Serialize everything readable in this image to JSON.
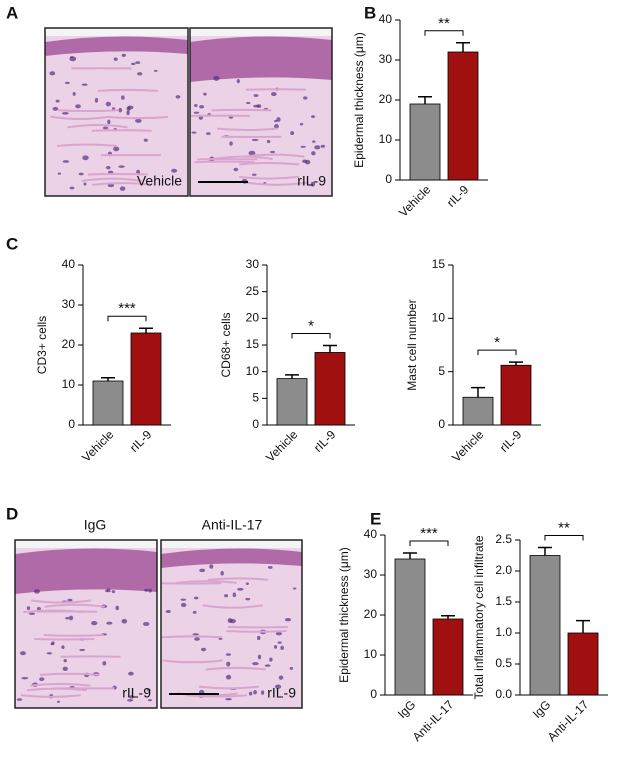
{
  "panels": {
    "A": {
      "letter": "A",
      "image_captions": [
        "Vehicle",
        "rIL-9"
      ]
    },
    "B": {
      "letter": "B"
    },
    "C": {
      "letter": "C"
    },
    "D": {
      "letter": "D",
      "image_titles": [
        "IgG",
        "Anti-IL-17"
      ],
      "image_captions": [
        "rIL-9",
        "rIL-9"
      ]
    },
    "E": {
      "letter": "E"
    }
  },
  "chart_data": [
    {
      "type": "bar",
      "ylabel": "Epidermal thickness (μm)",
      "categories": [
        "Vehicle",
        "rIL-9"
      ],
      "values": [
        19,
        32
      ],
      "errors": [
        1.8,
        2.3
      ],
      "colors": [
        "#8c8c8c",
        "#a01010"
      ],
      "ylim": [
        0,
        40
      ],
      "yticks": [
        0,
        10,
        20,
        30,
        40
      ],
      "annotation": "**"
    },
    {
      "type": "bar",
      "ylabel": "CD3+ cells",
      "categories": [
        "Vehicle",
        "rIL-9"
      ],
      "values": [
        11,
        23
      ],
      "errors": [
        0.8,
        1.2
      ],
      "colors": [
        "#8c8c8c",
        "#a01010"
      ],
      "ylim": [
        0,
        40
      ],
      "yticks": [
        0,
        10,
        20,
        30,
        40
      ],
      "annotation": "***"
    },
    {
      "type": "bar",
      "ylabel": "CD68+ cells",
      "categories": [
        "Vehicle",
        "rIL-9"
      ],
      "values": [
        8.7,
        13.6
      ],
      "errors": [
        0.7,
        1.3
      ],
      "colors": [
        "#8c8c8c",
        "#a01010"
      ],
      "ylim": [
        0,
        30
      ],
      "yticks": [
        0,
        5,
        10,
        15,
        20,
        25,
        30
      ],
      "annotation": "*"
    },
    {
      "type": "bar",
      "ylabel": "Mast cell number",
      "categories": [
        "Vehicle",
        "rIL-9"
      ],
      "values": [
        2.6,
        5.6
      ],
      "errors": [
        0.9,
        0.3
      ],
      "colors": [
        "#8c8c8c",
        "#a01010"
      ],
      "ylim": [
        0,
        15
      ],
      "yticks": [
        0,
        5,
        10,
        15
      ],
      "annotation": "*"
    },
    {
      "type": "bar",
      "ylabel": "Epidermal thickness (μm)",
      "categories": [
        "IgG",
        "Anti-IL-17"
      ],
      "values": [
        34,
        19
      ],
      "errors": [
        1.5,
        0.8
      ],
      "colors": [
        "#8c8c8c",
        "#a01010"
      ],
      "ylim": [
        0,
        40
      ],
      "yticks": [
        0,
        10,
        20,
        30,
        40
      ],
      "annotation": "***"
    },
    {
      "type": "bar",
      "ylabel": "Total inflammatory cell infiltrate",
      "categories": [
        "IgG",
        "Anti-IL-17"
      ],
      "values": [
        2.25,
        1.0
      ],
      "errors": [
        0.13,
        0.2
      ],
      "colors": [
        "#8c8c8c",
        "#a01010"
      ],
      "ylim": [
        0,
        2.5
      ],
      "yticks": [
        {
          "value": 0,
          "label": "0.0"
        },
        0.5,
        {
          "value": 1,
          "label": "1.0"
        },
        1.5,
        {
          "value": 2,
          "label": "2.0"
        },
        2.5
      ],
      "annotation": "**"
    }
  ]
}
